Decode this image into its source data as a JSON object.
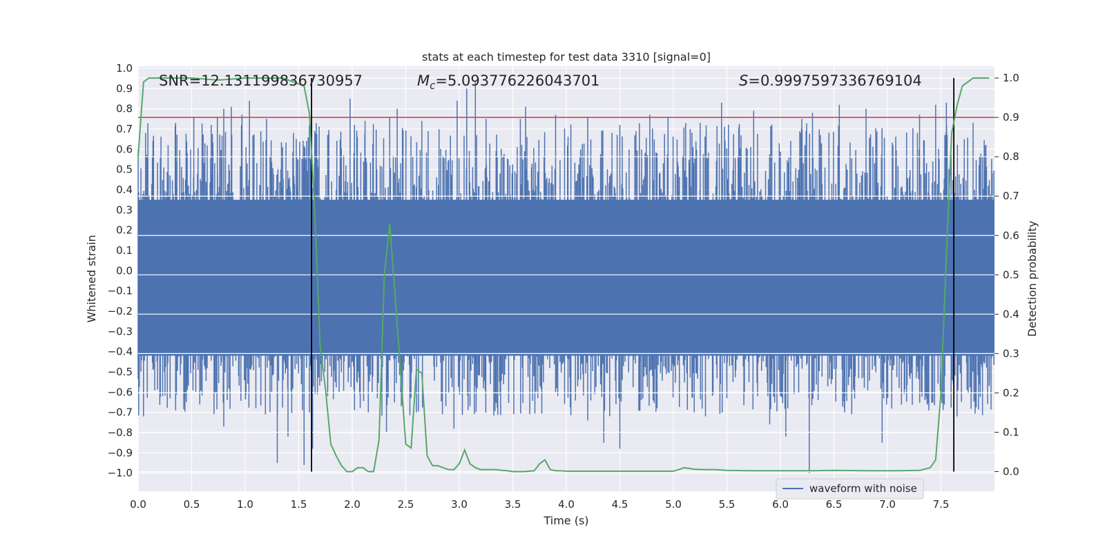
{
  "chart_data": {
    "type": "line",
    "title": "stats at each timestep for test data 3310 [signal=0]",
    "xlabel": "Time (s)",
    "ylabel_left": "Whitened strain",
    "ylabel_right": "Detection probability",
    "xlim": [
      0.0,
      8.0
    ],
    "ylim_left": [
      -1.09,
      1.01
    ],
    "ylim_right": [
      -0.05,
      1.03
    ],
    "x_ticks": [
      "0.0",
      "0.5",
      "1.0",
      "1.5",
      "2.0",
      "2.5",
      "3.0",
      "3.5",
      "4.0",
      "4.5",
      "5.0",
      "5.5",
      "6.0",
      "6.5",
      "7.0",
      "7.5"
    ],
    "y_ticks_left": [
      "1.0",
      "0.9",
      "0.8",
      "0.7",
      "0.6",
      "0.5",
      "0.4",
      "0.3",
      "0.2",
      "0.1",
      "0.0",
      "−0.1",
      "−0.2",
      "−0.3",
      "−0.4",
      "−0.5",
      "−0.6",
      "−0.7",
      "−0.8",
      "−0.9",
      "−1.0"
    ],
    "y_ticks_right": [
      "1.0",
      "0.9",
      "0.8",
      "0.7",
      "0.6",
      "0.5",
      "0.4",
      "0.3",
      "0.2",
      "0.1",
      "0.0"
    ],
    "annotations": {
      "snr": "SNR=12.131199836730957",
      "mc_symbol": "M",
      "mc_sub": "c",
      "mc_value": "=5.093776226043701",
      "s_symbol": "S",
      "s_value": "=0.9997597336769104"
    },
    "threshold_line": {
      "value": 0.9,
      "axis": "right",
      "color": "#c44e52"
    },
    "event_lines": {
      "x": [
        1.62,
        7.62
      ],
      "color": "#000000"
    },
    "series": [
      {
        "name": "waveform with noise",
        "color": "#4c72b0",
        "axis": "left",
        "core_amplitude": [
          -0.42,
          0.35
        ],
        "peaks": [
          [
            0.07,
            0.68
          ],
          [
            0.28,
            0.62
          ],
          [
            0.35,
            0.73
          ],
          [
            0.52,
            0.76
          ],
          [
            0.74,
            0.76
          ],
          [
            0.8,
            0.8
          ],
          [
            0.87,
            0.81
          ],
          [
            0.97,
            0.77
          ],
          [
            1.04,
            0.84
          ],
          [
            1.2,
            0.75
          ],
          [
            1.35,
            0.61
          ],
          [
            1.6,
            0.72
          ],
          [
            1.65,
            0.69
          ],
          [
            1.98,
            0.85
          ],
          [
            2.12,
            0.74
          ],
          [
            2.35,
            0.76
          ],
          [
            2.42,
            0.8
          ],
          [
            2.65,
            0.74
          ],
          [
            2.98,
            0.84
          ],
          [
            3.07,
            0.9
          ],
          [
            3.15,
            0.93
          ],
          [
            3.25,
            0.75
          ],
          [
            3.57,
            0.75
          ],
          [
            3.62,
            0.81
          ],
          [
            3.9,
            0.77
          ],
          [
            4.2,
            0.76
          ],
          [
            4.5,
            0.72
          ],
          [
            4.78,
            0.77
          ],
          [
            4.95,
            0.76
          ],
          [
            5.25,
            0.73
          ],
          [
            5.45,
            0.83
          ],
          [
            5.75,
            0.79
          ],
          [
            6.2,
            0.75
          ],
          [
            6.3,
            0.78
          ],
          [
            6.55,
            0.82
          ],
          [
            6.8,
            0.8
          ],
          [
            7.3,
            0.77
          ],
          [
            7.45,
            0.82
          ],
          [
            7.55,
            0.83
          ],
          [
            7.8,
            0.73
          ]
        ],
        "troughs": [
          [
            0.05,
            -0.72
          ],
          [
            0.35,
            -0.69
          ],
          [
            0.45,
            -0.65
          ],
          [
            0.8,
            -0.77
          ],
          [
            1.1,
            -0.68
          ],
          [
            1.3,
            -0.95
          ],
          [
            1.4,
            -0.82
          ],
          [
            1.55,
            -0.96
          ],
          [
            1.63,
            -0.88
          ],
          [
            1.77,
            -0.62
          ],
          [
            2.15,
            -0.7
          ],
          [
            2.32,
            -0.8
          ],
          [
            2.6,
            -0.7
          ],
          [
            2.95,
            -0.78
          ],
          [
            3.1,
            -0.67
          ],
          [
            3.9,
            -0.6
          ],
          [
            4.2,
            -0.74
          ],
          [
            4.35,
            -0.85
          ],
          [
            4.5,
            -0.88
          ],
          [
            4.7,
            -0.64
          ],
          [
            5.3,
            -0.72
          ],
          [
            5.5,
            -0.63
          ],
          [
            5.9,
            -0.76
          ],
          [
            6.05,
            -0.82
          ],
          [
            6.27,
            -1.0
          ],
          [
            6.6,
            -0.7
          ],
          [
            6.95,
            -0.85
          ],
          [
            7.35,
            -0.64
          ],
          [
            7.65,
            -0.72
          ],
          [
            7.95,
            -0.57
          ]
        ]
      },
      {
        "name": "Detection probability",
        "color": "#55a868",
        "axis": "right",
        "x": [
          0.0,
          0.05,
          0.1,
          0.15,
          0.25,
          0.5,
          0.75,
          1.0,
          1.25,
          1.35,
          1.45,
          1.55,
          1.6,
          1.65,
          1.7,
          1.75,
          1.8,
          1.85,
          1.9,
          1.95,
          2.0,
          2.05,
          2.1,
          2.15,
          2.2,
          2.25,
          2.3,
          2.35,
          2.4,
          2.45,
          2.5,
          2.55,
          2.6,
          2.65,
          2.7,
          2.75,
          2.8,
          2.85,
          2.9,
          2.95,
          3.0,
          3.05,
          3.1,
          3.15,
          3.2,
          3.25,
          3.3,
          3.35,
          3.4,
          3.45,
          3.5,
          3.6,
          3.7,
          3.75,
          3.8,
          3.85,
          3.9,
          3.95,
          4.0,
          4.2,
          4.5,
          4.8,
          5.0,
          5.05,
          5.1,
          5.15,
          5.2,
          5.3,
          5.4,
          5.5,
          5.7,
          6.0,
          6.3,
          6.5,
          6.8,
          7.1,
          7.3,
          7.4,
          7.45,
          7.5,
          7.55,
          7.6,
          7.65,
          7.7,
          7.75,
          7.8,
          7.85,
          7.9,
          7.95
        ],
        "y": [
          0.8,
          0.99,
          1.0,
          1.0,
          1.0,
          1.0,
          0.995,
          1.0,
          1.0,
          1.0,
          0.99,
          0.98,
          0.91,
          0.66,
          0.32,
          0.21,
          0.07,
          0.04,
          0.015,
          0.0,
          0.0,
          0.01,
          0.01,
          0.0,
          0.0,
          0.08,
          0.5,
          0.63,
          0.45,
          0.26,
          0.07,
          0.06,
          0.26,
          0.25,
          0.04,
          0.015,
          0.015,
          0.01,
          0.005,
          0.005,
          0.02,
          0.055,
          0.02,
          0.01,
          0.005,
          0.005,
          0.005,
          0.005,
          0.003,
          0.002,
          0.0,
          0.0,
          0.002,
          0.02,
          0.03,
          0.005,
          0.002,
          0.002,
          0.001,
          0.001,
          0.001,
          0.001,
          0.001,
          0.005,
          0.01,
          0.008,
          0.006,
          0.005,
          0.005,
          0.003,
          0.002,
          0.002,
          0.002,
          0.003,
          0.002,
          0.002,
          0.003,
          0.01,
          0.03,
          0.2,
          0.55,
          0.86,
          0.93,
          0.98,
          0.99,
          1.0,
          1.0,
          1.0,
          1.0
        ]
      }
    ],
    "legend": {
      "entries": [
        "waveform with noise"
      ],
      "location": "lower-right"
    }
  }
}
